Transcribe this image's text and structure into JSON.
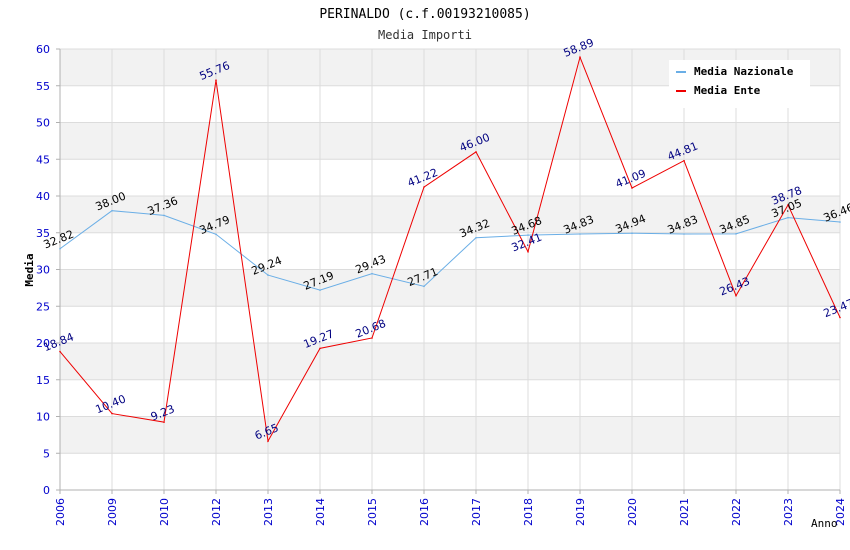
{
  "chart_data": {
    "type": "line",
    "title": "PERINALDO (c.f.00193210085)",
    "subtitle": "Media Importi",
    "xlabel": "Anno",
    "ylabel": "Media",
    "ylim": [
      0,
      60
    ],
    "yticks": [
      0,
      5,
      10,
      15,
      20,
      25,
      30,
      35,
      40,
      45,
      50,
      55,
      60
    ],
    "categories": [
      "2006",
      "2009",
      "2010",
      "2012",
      "2013",
      "2014",
      "2015",
      "2016",
      "2017",
      "2018",
      "2019",
      "2020",
      "2021",
      "2022",
      "2023",
      "2024"
    ],
    "legend_position": "top-right",
    "grid": true,
    "series": [
      {
        "name": "Media Nazionale",
        "color": "#6aaee6",
        "label_color": "#000000",
        "values": [
          32.82,
          38.0,
          37.36,
          34.79,
          29.24,
          27.19,
          29.43,
          27.71,
          34.32,
          34.68,
          34.83,
          34.94,
          34.83,
          34.85,
          37.05,
          36.46
        ],
        "labels": [
          "32.82",
          "38.00",
          "37.36",
          "34.79",
          "29.24",
          "27.19",
          "29.43",
          "27.71",
          "34.32",
          "34.68",
          "34.83",
          "34.94",
          "34.83",
          "34.85",
          "37.05",
          "36.46"
        ]
      },
      {
        "name": "Media Ente",
        "color": "#ee0000",
        "label_color": "#000080",
        "values": [
          18.84,
          10.4,
          9.23,
          55.76,
          6.65,
          19.27,
          20.68,
          41.22,
          46.0,
          32.41,
          58.89,
          41.09,
          44.81,
          26.43,
          38.78,
          23.47
        ],
        "labels": [
          "18.84",
          "10.40",
          "9.23",
          "55.76",
          "6.65",
          "19.27",
          "20.68",
          "41.22",
          "46.00",
          "32.41",
          "58.89",
          "41.09",
          "44.81",
          "26.43",
          "38.78",
          "23.47"
        ]
      }
    ],
    "colors": {
      "band": "#f2f2f2",
      "grid": "#dcdcdc",
      "axis": "#b0b0b0",
      "tick_label": "#0000cc",
      "title": "#000000",
      "subtitle": "#333333"
    }
  }
}
